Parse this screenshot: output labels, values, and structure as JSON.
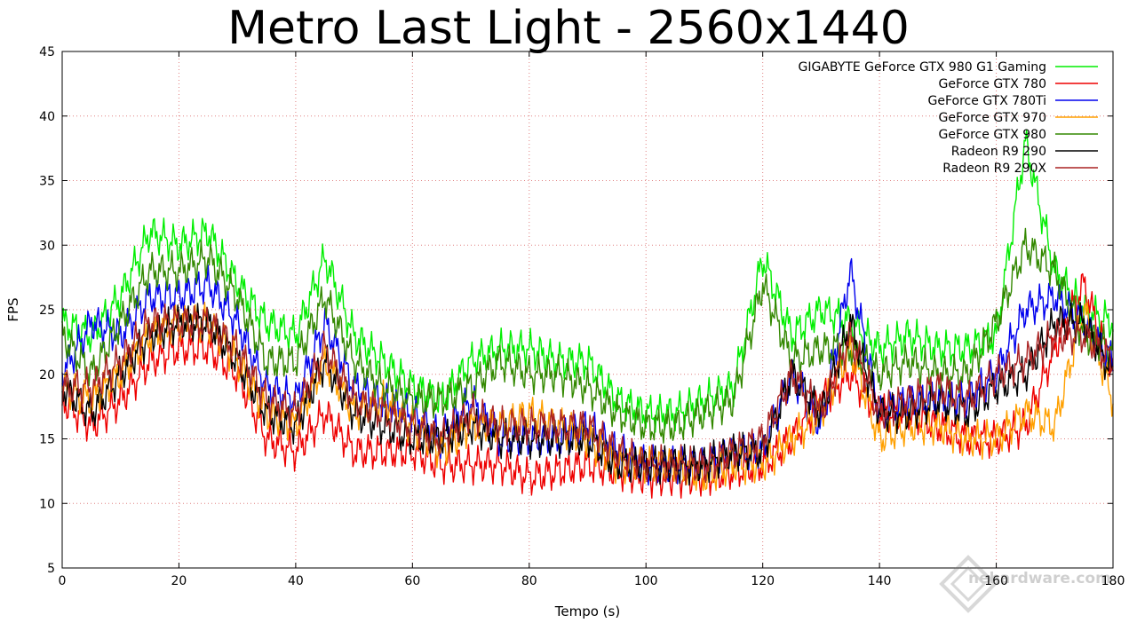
{
  "chart_data": {
    "type": "line",
    "title": "Metro Last Light - 2560x1440",
    "xlabel": "Tempo (s)",
    "ylabel": "FPS",
    "xlim": [
      0,
      180
    ],
    "ylim": [
      5,
      45
    ],
    "xticks": [
      0,
      20,
      40,
      60,
      80,
      100,
      120,
      140,
      160,
      180
    ],
    "yticks": [
      5,
      10,
      15,
      20,
      25,
      30,
      35,
      40,
      45
    ],
    "grid": true,
    "legend_position": "top-right",
    "x": [
      0,
      5,
      10,
      15,
      20,
      25,
      30,
      35,
      40,
      45,
      50,
      55,
      60,
      65,
      70,
      75,
      80,
      85,
      90,
      95,
      100,
      105,
      110,
      115,
      120,
      125,
      130,
      135,
      140,
      145,
      150,
      155,
      160,
      165,
      170,
      175,
      180
    ],
    "series": [
      {
        "name": "GIGABYTE GeForce GTX 980 G1 Gaming",
        "color": "#00ee00",
        "values": [
          24,
          23,
          26,
          31,
          30,
          31,
          27,
          24,
          23,
          29,
          23,
          21,
          19,
          18,
          21,
          22,
          22,
          21,
          21,
          18,
          17,
          17,
          18,
          19,
          29,
          23,
          25,
          24,
          22,
          23,
          22,
          22,
          23,
          38,
          28,
          25,
          24
        ]
      },
      {
        "name": "GeForce GTX 780",
        "color": "#ee0000",
        "values": [
          18,
          16,
          18,
          21,
          22,
          22,
          20,
          15,
          14,
          17,
          14,
          14,
          14,
          13,
          13,
          13,
          12,
          12.5,
          13,
          12.5,
          12,
          12,
          12,
          12.5,
          13,
          15,
          18,
          20,
          17,
          17,
          16,
          15,
          15,
          16,
          22,
          27,
          20
        ]
      },
      {
        "name": "GeForce GTX 780Ti",
        "color": "#0000ee",
        "values": [
          20,
          24,
          23,
          26,
          26,
          27,
          24,
          19,
          18,
          24,
          19,
          18,
          17,
          15,
          18,
          15,
          15,
          15,
          16,
          14,
          13,
          13,
          13,
          14,
          14,
          20,
          16,
          28,
          17,
          18,
          18,
          18,
          20,
          25,
          26,
          24,
          21
        ]
      },
      {
        "name": "GeForce GTX 970",
        "color": "#ffa000",
        "values": [
          19,
          18,
          20,
          23,
          24,
          24,
          21,
          17,
          16,
          21,
          17,
          18,
          16,
          14,
          16,
          16,
          17,
          16,
          15,
          13,
          13,
          13,
          12,
          13,
          13,
          15,
          17,
          22,
          15,
          16,
          16,
          15,
          15,
          17,
          16,
          25,
          18
        ]
      },
      {
        "name": "GeForce GTX 980",
        "color": "#338800",
        "values": [
          23,
          20,
          24,
          28,
          28,
          29,
          26,
          21,
          21,
          26,
          21,
          19,
          18,
          18,
          19,
          21,
          20,
          20,
          19,
          17,
          16,
          16,
          17,
          18,
          27,
          21,
          22,
          22,
          20,
          21,
          20,
          20,
          24,
          30,
          28,
          23,
          22
        ]
      },
      {
        "name": "Radeon R9 290",
        "color": "#000000",
        "values": [
          19,
          17,
          20,
          23,
          24,
          24,
          21,
          17,
          16,
          21,
          17,
          16,
          15,
          15,
          16,
          15,
          15,
          15,
          15,
          13,
          13,
          13,
          13,
          14,
          14,
          20,
          17,
          24,
          17,
          17,
          18,
          17,
          19,
          20,
          24,
          24,
          20
        ]
      },
      {
        "name": "Radeon R9 290X",
        "color": "#aa2222",
        "values": [
          19,
          19,
          21,
          24,
          24,
          24,
          22,
          18,
          17,
          22,
          18,
          17,
          16,
          15,
          17,
          16,
          16,
          16,
          16,
          14,
          13,
          13,
          13,
          14,
          15,
          20,
          17,
          23,
          17,
          18,
          19,
          18,
          20,
          21,
          23,
          23,
          21
        ]
      }
    ]
  },
  "watermark": {
    "text": "hardware.com",
    "logo_letters": "ne"
  }
}
